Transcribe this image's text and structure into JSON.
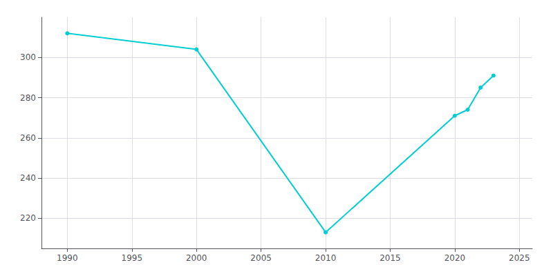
{
  "chart_data": {
    "type": "line",
    "x": [
      1990,
      2000,
      2010,
      2020,
      2021,
      2022,
      2023
    ],
    "values": [
      312,
      304,
      213,
      271,
      274,
      285,
      291
    ],
    "color": "#00CED1",
    "marker": "circle",
    "xlim": [
      1988,
      2026
    ],
    "ylim": [
      205,
      320
    ],
    "xticks": [
      1990,
      1995,
      2000,
      2005,
      2010,
      2015,
      2020,
      2025
    ],
    "yticks": [
      220,
      240,
      260,
      280,
      300
    ],
    "grid": true
  }
}
